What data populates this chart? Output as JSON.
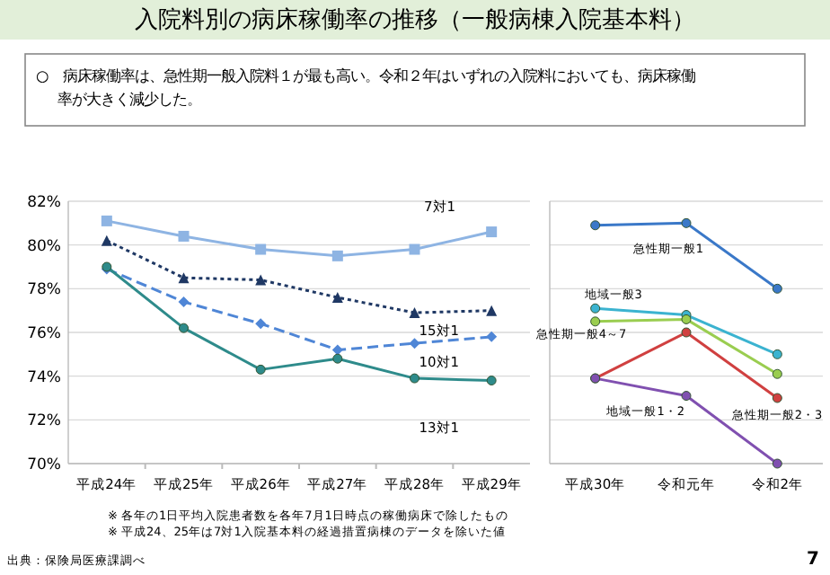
{
  "chart_data": [
    {
      "type": "line",
      "title": "入院料別の病床稼働率の推移（一般病棟入院基本料）",
      "subtitle": "○　病床稼働率は、急性期一般入院料１が最も高い。令和２年はいずれの入院料においても、病床稼働率が大きく減少した。",
      "categories": [
        "平成24年",
        "平成25年",
        "平成26年",
        "平成27年",
        "平成28年",
        "平成29年"
      ],
      "ylim": [
        70,
        82
      ],
      "yticks": [
        {
          "value": 70,
          "label": "70%"
        },
        {
          "value": 72,
          "label": "72%"
        },
        {
          "value": 74,
          "label": "74%"
        },
        {
          "value": 76,
          "label": "76%"
        },
        {
          "value": 78,
          "label": "78%"
        },
        {
          "value": 80,
          "label": "80%"
        },
        {
          "value": 82,
          "label": "82%"
        }
      ],
      "grid": "y",
      "series": [
        {
          "name": "7対1",
          "color": "#8eb4e3",
          "marker": "square",
          "line_style": "solid",
          "values": [
            81.1,
            80.4,
            79.8,
            79.5,
            79.8,
            80.6
          ]
        },
        {
          "name": "15対1",
          "color": "#1f3864",
          "marker": "triangle",
          "line_style": "dotted",
          "values": [
            80.2,
            78.5,
            78.4,
            77.6,
            76.9,
            77.0
          ]
        },
        {
          "name": "10対1",
          "color": "#4f86d6",
          "marker": "diamond",
          "line_style": "dashed",
          "values": [
            78.9,
            77.4,
            76.4,
            75.2,
            75.5,
            75.8
          ]
        },
        {
          "name": "13対1",
          "color": "#2e8b8b",
          "marker": "circle",
          "line_style": "solid",
          "values": [
            79.0,
            76.2,
            74.3,
            74.8,
            73.9,
            73.8
          ]
        }
      ],
      "annotations": [
        "※ 各年の1日平均入院患者数を各年7月1日時点の稼働病床で除したもの",
        "※ 平成24、25年は7対1入院基本料の経過措置病棟のデータを除いた値",
        "出典：保険局医療課調べ",
        "7"
      ]
    },
    {
      "type": "line",
      "categories": [
        "平成30年",
        "令和元年",
        "令和2年"
      ],
      "ylim": [
        70,
        82
      ],
      "yticks": [
        {
          "value": 70,
          "label": null
        },
        {
          "value": 72,
          "label": null
        },
        {
          "value": 74,
          "label": null
        },
        {
          "value": 76,
          "label": null
        },
        {
          "value": 78,
          "label": null
        },
        {
          "value": 80,
          "label": null
        },
        {
          "value": 82,
          "label": null
        }
      ],
      "grid": "y",
      "tick_labels": "x",
      "series": [
        {
          "name": "急性期一般1",
          "color": "#3a78c8",
          "marker": "circle",
          "line_style": "solid",
          "values": [
            80.9,
            81.0,
            78.0
          ]
        },
        {
          "name": "地域一般3",
          "color": "#3bb3d0",
          "marker": "circle",
          "line_style": "solid",
          "values": [
            77.1,
            76.8,
            75.0
          ]
        },
        {
          "name": "急性期一般4～7",
          "color": "#9acd50",
          "marker": "circle",
          "line_style": "solid",
          "values": [
            76.5,
            76.6,
            74.1
          ]
        },
        {
          "name": "急性期一般2・3",
          "color": "#d04040",
          "marker": "circle",
          "line_style": "solid",
          "values": [
            73.9,
            76.0,
            73.0
          ]
        },
        {
          "name": "地域一般1・2",
          "color": "#8050b0",
          "marker": "circle",
          "line_style": "solid",
          "values": [
            73.9,
            73.1,
            70.0
          ]
        }
      ]
    }
  ]
}
